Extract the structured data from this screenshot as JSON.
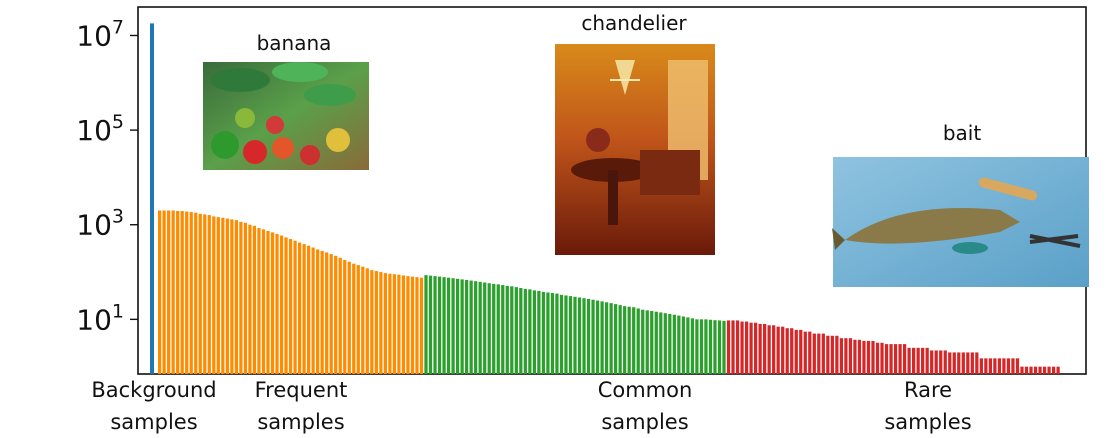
{
  "chart_data": {
    "type": "bar",
    "yscale": "log",
    "ylim": [
      0.7,
      40000000
    ],
    "yticks": [
      {
        "value": 10,
        "base": "10",
        "exp": "1"
      },
      {
        "value": 1000,
        "base": "10",
        "exp": "3"
      },
      {
        "value": 100000,
        "base": "10",
        "exp": "5"
      },
      {
        "value": 10000000,
        "base": "10",
        "exp": "7"
      }
    ],
    "background": {
      "name": "Background samples",
      "value": 18000000,
      "color": "#1f77b4"
    },
    "groups": [
      {
        "name": "Frequent samples",
        "color": "#ff8c00",
        "values": [
          2000,
          2000,
          2000,
          2000,
          1950,
          1950,
          1900,
          1850,
          1800,
          1700,
          1650,
          1600,
          1500,
          1450,
          1400,
          1350,
          1300,
          1250,
          1150,
          1100,
          1000,
          950,
          850,
          800,
          740,
          690,
          640,
          590,
          540,
          500,
          460,
          420,
          390,
          360,
          330,
          300,
          280,
          260,
          240,
          220,
          200,
          180,
          165,
          150,
          140,
          130,
          120,
          110,
          105,
          100,
          95,
          92,
          90,
          88,
          85,
          82,
          80,
          78,
          76
        ]
      },
      {
        "name": "Common samples",
        "color": "#2ca02c",
        "values": [
          86,
          84,
          82,
          80,
          78,
          76,
          74,
          72,
          70,
          68,
          66,
          64,
          62,
          60,
          58,
          56,
          55,
          53,
          51,
          50,
          48,
          46,
          44,
          43,
          41,
          40,
          38,
          37,
          36,
          35,
          33,
          32,
          31,
          30,
          29,
          28,
          27,
          26,
          25,
          24,
          23,
          22,
          21,
          20,
          19,
          18.5,
          18,
          17,
          16,
          15.5,
          15,
          14.5,
          14,
          13.5,
          13,
          12.5,
          12,
          11.5,
          11,
          10.5,
          10,
          10,
          10,
          9.8,
          9.6,
          9.5,
          9.3
        ]
      },
      {
        "name": "Rare samples",
        "color": "#d62728",
        "values": [
          9.5,
          9.5,
          9.5,
          9,
          9,
          8.5,
          8.5,
          8,
          8,
          7.5,
          7.5,
          7,
          7,
          6.5,
          6.5,
          6,
          6,
          5.5,
          5.5,
          5,
          5,
          5,
          4.5,
          4.5,
          4.5,
          4,
          4,
          4,
          3.7,
          3.7,
          3.5,
          3.5,
          3.5,
          3.2,
          3.2,
          3,
          3,
          3,
          3,
          3,
          2.5,
          2.5,
          2.5,
          2.5,
          2.5,
          2.2,
          2.2,
          2.2,
          2.2,
          2,
          2,
          2,
          2,
          2,
          2,
          2,
          1.5,
          1.5,
          1.5,
          1.5,
          1.5,
          1.5,
          1.5,
          1.5,
          1.5,
          1,
          1,
          1,
          1,
          1,
          1,
          1,
          1,
          1
        ]
      }
    ],
    "category_labels": [
      {
        "line1": "Background",
        "line2": "samples"
      },
      {
        "line1": "Frequent",
        "line2": "samples"
      },
      {
        "line1": "Common",
        "line2": "samples"
      },
      {
        "line1": "Rare",
        "line2": "samples"
      }
    ],
    "example_images": [
      {
        "label": "banana",
        "group": "Frequent samples"
      },
      {
        "label": "chandelier",
        "group": "Common samples"
      },
      {
        "label": "bait",
        "group": "Rare samples"
      }
    ],
    "grid": false,
    "legend": "none"
  }
}
